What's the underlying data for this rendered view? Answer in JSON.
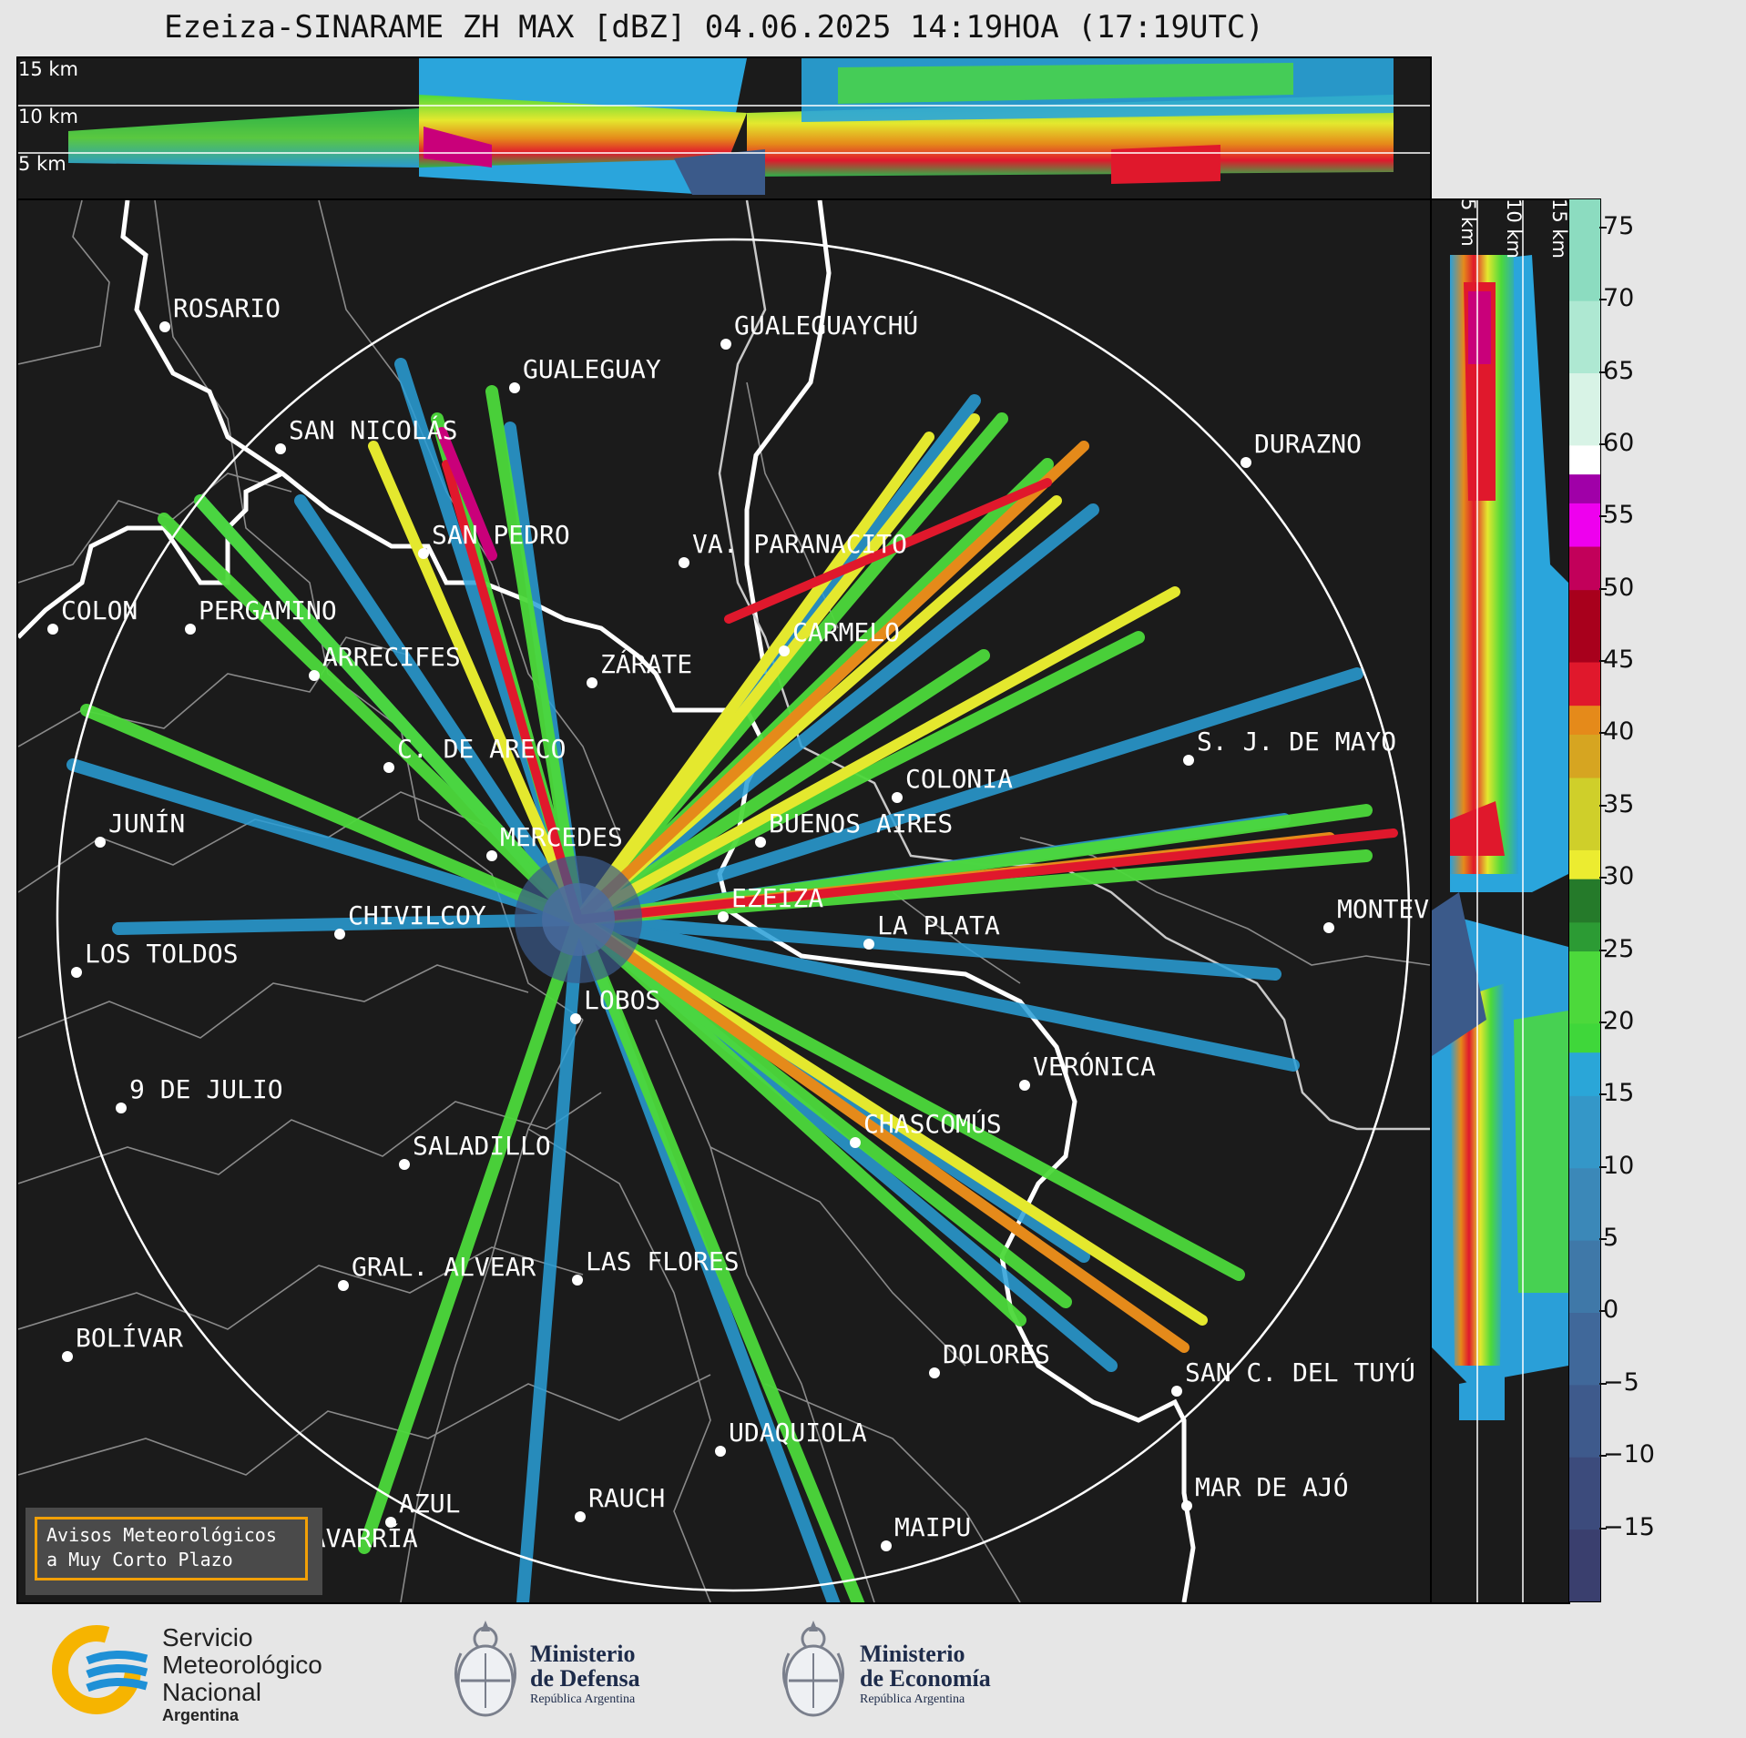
{
  "title": "Ezeiza-SINARAME ZH MAX [dBZ] 04.06.2025 14:19HOA (17:19UTC)",
  "top_panel_labels": [
    "15 km",
    "10 km",
    "5 km"
  ],
  "side_panel_labels": [
    "5 km",
    "10 km",
    "15 km"
  ],
  "colorbar": {
    "unit": "dBZ",
    "ticks": [
      "75",
      "70",
      "65",
      "60",
      "55",
      "50",
      "45",
      "40",
      "35",
      "30",
      "25",
      "20",
      "15",
      "10",
      "5",
      "0",
      "−5",
      "−10",
      "−15"
    ],
    "range": [
      -20,
      77
    ]
  },
  "places": [
    {
      "name": "ROSARIO"
    },
    {
      "name": "GUALEGUAYCHÚ"
    },
    {
      "name": "GUALEGUAY"
    },
    {
      "name": "SAN NICOLÁS"
    },
    {
      "name": "DURAZNO"
    },
    {
      "name": "SAN PEDRO"
    },
    {
      "name": "VA. PARANACITO"
    },
    {
      "name": "COLON"
    },
    {
      "name": "PERGAMINO"
    },
    {
      "name": "CARMELO"
    },
    {
      "name": "ARRECIFES"
    },
    {
      "name": "ZÁRATE"
    },
    {
      "name": "S. J. DE MAYO"
    },
    {
      "name": "C. DE ARECO"
    },
    {
      "name": "COLONIA"
    },
    {
      "name": "JUNÍN"
    },
    {
      "name": "BUENOS AIRES"
    },
    {
      "name": "MERCEDES"
    },
    {
      "name": "EZEIZA"
    },
    {
      "name": "MONTEV"
    },
    {
      "name": "CHIVILCOY"
    },
    {
      "name": "LA PLATA"
    },
    {
      "name": "LOS TOLDOS"
    },
    {
      "name": "LOBOS"
    },
    {
      "name": "VERÓNICA"
    },
    {
      "name": "9 DE JULIO"
    },
    {
      "name": "CHASCOMÚS"
    },
    {
      "name": "SALADILLO"
    },
    {
      "name": "GRAL. ALVEAR"
    },
    {
      "name": "LAS FLORES"
    },
    {
      "name": "BOLÍVAR"
    },
    {
      "name": "DOLORES"
    },
    {
      "name": "SAN C. DEL TUYÚ"
    },
    {
      "name": "UDAQUIOLA"
    },
    {
      "name": "AZUL"
    },
    {
      "name": "RAUCH"
    },
    {
      "name": "MAR DE AJÓ"
    },
    {
      "name": "OLAVARRÍA"
    },
    {
      "name": "MAIPU"
    }
  ],
  "warning_box": {
    "line1": "Avisos Meteorológicos",
    "line2": "a Muy Corto Plazo",
    "border_color": "#f2a007"
  },
  "logos": {
    "smn": {
      "line1": "Servicio",
      "line2": "Meteorológico",
      "line3": "Nacional",
      "line4": "Argentina"
    },
    "defensa": {
      "line1": "Ministerio",
      "line2": "de Defensa",
      "line3": "República Argentina"
    },
    "economia": {
      "line1": "Ministerio",
      "line2": "de Economía",
      "line3": "República Argentina"
    }
  },
  "colors": {
    "background": "#1b1b1b",
    "range_ring": "#ffffff",
    "coast": "#ffffff",
    "borders": "#8a8a8a",
    "smn_blue": "#1e90d6",
    "smn_yellow": "#f6b400"
  }
}
